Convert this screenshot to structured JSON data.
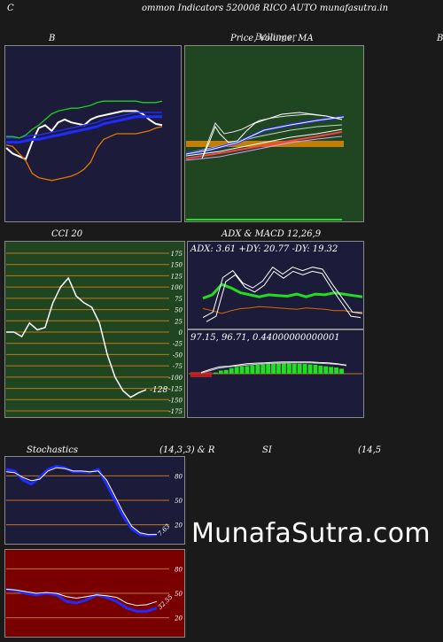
{
  "header": {
    "left": "C",
    "title": "ommon  Indicators 520008  RICO AUTO munafasutra.in"
  },
  "titles": {
    "bollinger": "B",
    "price": "Price,  Volume,  MA",
    "price_overlap": "Bollinger",
    "right_edge": "B",
    "cci": "CCI 20",
    "adx": "ADX  & MACD 12,26,9",
    "stoch_left": "Stochastics",
    "stoch_mid": "(14,3,3) & R",
    "stoch_rsi": "SI",
    "stoch_right": "(14,5"
  },
  "colors": {
    "navy": "#1c1c3a",
    "green_panel": "#1f4620",
    "red_panel": "#7a0000",
    "grid": "#c07818",
    "white": "#ffffff",
    "blue": "#1f2bff",
    "bright_green": "#22dd22",
    "orange": "#d96b00"
  },
  "watermark": "MunafaSutra.com",
  "chart_data": [
    {
      "type": "line",
      "name": "bollinger",
      "series": [
        {
          "color": "#ffffff",
          "values": [
            40,
            36,
            34,
            32,
            44,
            54,
            56,
            52,
            58,
            60,
            58,
            57,
            56,
            60,
            62,
            63,
            64,
            65,
            66,
            66,
            66,
            64,
            60,
            57,
            56
          ]
        },
        {
          "color": "#1f2bff",
          "values": [
            44,
            44,
            44,
            45,
            46,
            46,
            47,
            48,
            49,
            50,
            51,
            52,
            53,
            54,
            55,
            57,
            58,
            59,
            60,
            61,
            62,
            62,
            62,
            62,
            62
          ]
        },
        {
          "color": "#22cc22",
          "values": [
            48,
            48,
            47,
            49,
            53,
            56,
            60,
            64,
            66,
            67,
            68,
            68,
            69,
            70,
            72,
            73,
            73,
            73,
            73,
            73,
            73,
            72,
            72,
            72,
            73
          ]
        },
        {
          "color": "#e07800",
          "values": [
            42,
            41,
            36,
            31,
            22,
            19,
            18,
            17,
            18,
            19,
            20,
            22,
            25,
            30,
            40,
            46,
            48,
            50,
            50,
            50,
            50,
            51,
            52,
            54,
            55
          ]
        }
      ]
    },
    {
      "type": "line",
      "name": "cci",
      "ticks": [
        175,
        150,
        125,
        100,
        75,
        50,
        25,
        0,
        -25,
        -50,
        -75,
        -100,
        -125,
        -150,
        -175
      ],
      "ylim": [
        -175,
        175
      ],
      "last_label": "-128",
      "values": [
        0,
        0,
        -10,
        20,
        5,
        10,
        65,
        100,
        120,
        80,
        65,
        55,
        20,
        -50,
        -100,
        -130,
        -145,
        -135,
        -128
      ]
    },
    {
      "type": "line",
      "name": "adx",
      "label": "ADX: 3.61  +DY: 20.77  -DY: 19.32",
      "ylim": [
        0,
        100
      ],
      "series": [
        {
          "color": "#22dd22",
          "values": [
            40,
            45,
            60,
            55,
            48,
            45,
            42,
            45,
            44,
            43,
            46,
            42,
            46,
            45,
            48,
            46,
            44,
            42
          ]
        },
        {
          "color": "#d96b00",
          "values": [
            25,
            22,
            18,
            22,
            25,
            26,
            28,
            27,
            26,
            25,
            24,
            26,
            25,
            24,
            22,
            22,
            20,
            20
          ]
        },
        {
          "color": "#ffffff",
          "values": [
            12,
            20,
            70,
            80,
            62,
            55,
            65,
            85,
            75,
            85,
            80,
            85,
            82,
            60,
            40,
            20,
            18
          ]
        }
      ]
    },
    {
      "type": "bar",
      "name": "macd",
      "label": "97.15,  96.71,  0.44000000000001",
      "values": [
        0.1,
        0.25,
        0.3,
        0.45,
        0.55,
        0.6,
        0.62,
        0.68,
        0.72,
        0.75,
        0.78,
        0.8,
        0.82,
        0.82,
        0.82,
        0.81,
        0.8,
        0.78,
        0.75,
        0.72,
        0.65,
        0.6,
        0.55,
        0.5,
        0.4
      ],
      "lines": [
        {
          "color": "#ffffff",
          "values": [
            0.1,
            0.35,
            0.55,
            0.6,
            0.7,
            0.8,
            0.85,
            0.88,
            0.92,
            0.95,
            0.95,
            0.95,
            0.95,
            0.9,
            0.88,
            0.8,
            0.7
          ]
        },
        {
          "color": "#cccccc",
          "values": [
            0.05,
            0.25,
            0.45,
            0.55,
            0.62,
            0.7,
            0.76,
            0.8,
            0.84,
            0.86,
            0.87,
            0.87,
            0.87,
            0.84,
            0.8,
            0.75,
            0.65
          ]
        }
      ]
    },
    {
      "type": "line",
      "name": "stochastics",
      "ticks": [
        80,
        50,
        20
      ],
      "ylim": [
        0,
        100
      ],
      "last_label": "7.63",
      "series": [
        {
          "color": "#1f2bff",
          "values": [
            88,
            86,
            75,
            70,
            78,
            88,
            92,
            90,
            85,
            85,
            84,
            88,
            70,
            50,
            30,
            15,
            8,
            7,
            8
          ]
        },
        {
          "color": "#ffffff",
          "values": [
            85,
            84,
            78,
            74,
            76,
            86,
            90,
            89,
            86,
            86,
            85,
            86,
            75,
            55,
            35,
            18,
            10,
            8,
            8
          ]
        }
      ]
    },
    {
      "type": "line",
      "name": "rsi",
      "ticks": [
        80,
        50,
        20
      ],
      "ylim": [
        0,
        100
      ],
      "last_label": "32.55",
      "series": [
        {
          "color": "#1f2bff",
          "values": [
            55,
            53,
            50,
            48,
            50,
            48,
            40,
            38,
            42,
            48,
            45,
            40,
            32,
            28,
            28,
            32
          ]
        },
        {
          "color": "#ffffff",
          "values": [
            55,
            54,
            52,
            50,
            51,
            50,
            46,
            44,
            46,
            48,
            47,
            45,
            38,
            35,
            36,
            40
          ]
        }
      ]
    }
  ]
}
